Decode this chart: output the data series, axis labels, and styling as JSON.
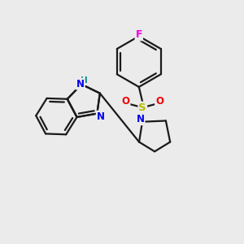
{
  "background_color": "#ebebeb",
  "bond_color": "#1a1a1a",
  "bond_width": 1.6,
  "dbo": 0.06,
  "atom_colors": {
    "N": "#0000ee",
    "NH": "#008888",
    "S": "#bbbb00",
    "O": "#ee0000",
    "F": "#ee00ee",
    "C": "#1a1a1a"
  },
  "font_size": 8.5
}
